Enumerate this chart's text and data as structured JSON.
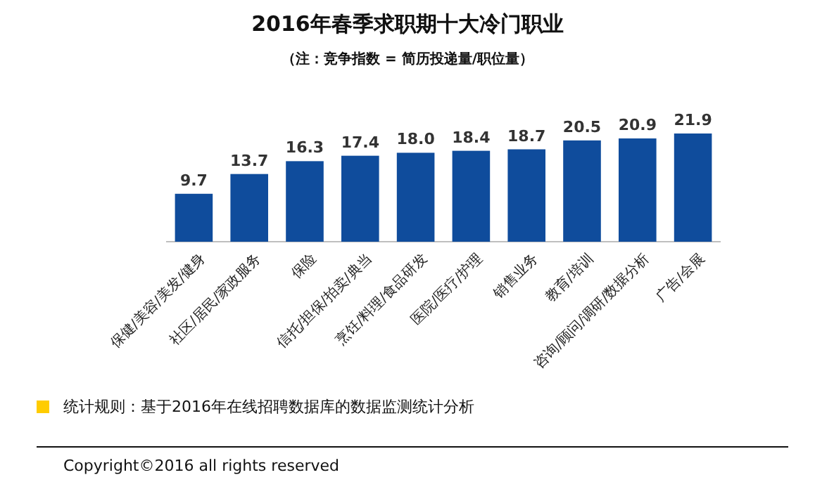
{
  "chart_data": {
    "type": "bar",
    "title": "2016年春季求职期十大冷门职业",
    "subtitle": "（注：竞争指数 = 简历投递量/职位量）",
    "categories": [
      "保健/美容/美发/健身",
      "社区/居民/家政服务",
      "保险",
      "信托/担保/拍卖/典当",
      "烹饪/料理/食品研发",
      "医院/医疗/护理",
      "销售业务",
      "教育/培训",
      "咨询/顾问/调研/数据分析",
      "广告/会展"
    ],
    "values": [
      9.7,
      13.7,
      16.3,
      17.4,
      18.0,
      18.4,
      18.7,
      20.5,
      20.9,
      21.9
    ],
    "value_labels": [
      "9.7",
      "13.7",
      "16.3",
      "17.4",
      "18.0",
      "18.4",
      "18.7",
      "20.5",
      "20.9",
      "21.9"
    ],
    "color": "#0f4c9c",
    "annotations": [
      "统计规则：基于2016年在线招聘数据库的数据监测统计分析",
      "Copyright©2016 all rights reserved"
    ]
  }
}
